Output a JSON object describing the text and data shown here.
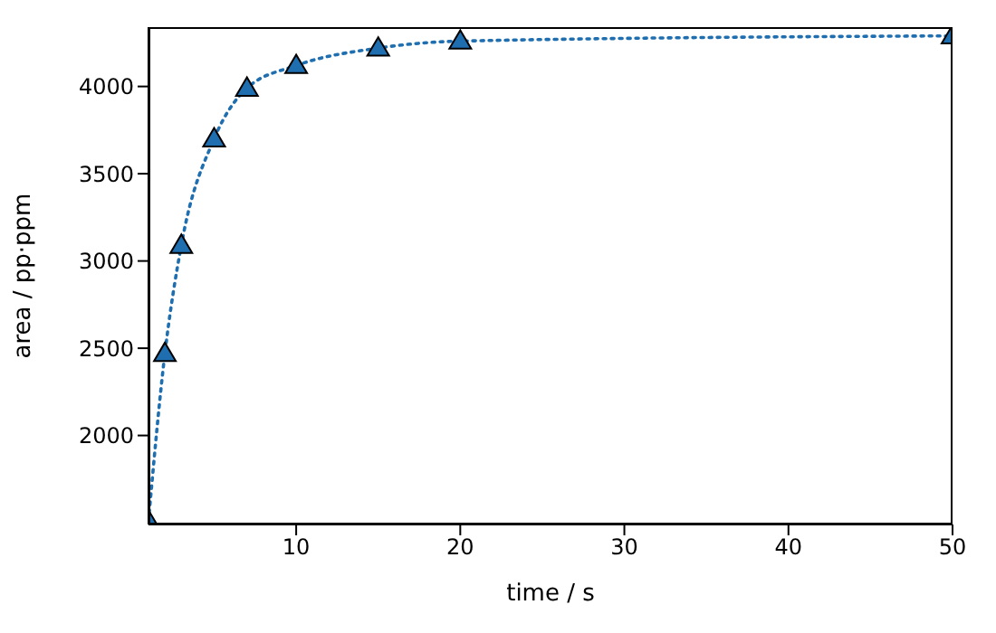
{
  "chart_data": {
    "type": "line",
    "xlabel": "time / s",
    "ylabel": "area / pp·ppm",
    "x": [
      1,
      2,
      3,
      5,
      7,
      10,
      15,
      20,
      50
    ],
    "series": [
      {
        "color": "#1f6fb0",
        "values": [
          1510,
          2470,
          3090,
          3700,
          3990,
          4120,
          4220,
          4260,
          4290
        ]
      }
    ],
    "xlim": [
      1,
      50
    ],
    "xticks": [
      10,
      20,
      30,
      40,
      50
    ],
    "ylim": [
      1490,
      4340
    ],
    "yticks": [
      2000,
      2500,
      3000,
      3500,
      4000
    ],
    "marker": "triangle",
    "line_style": "dotted",
    "grid": false,
    "legend": false
  }
}
